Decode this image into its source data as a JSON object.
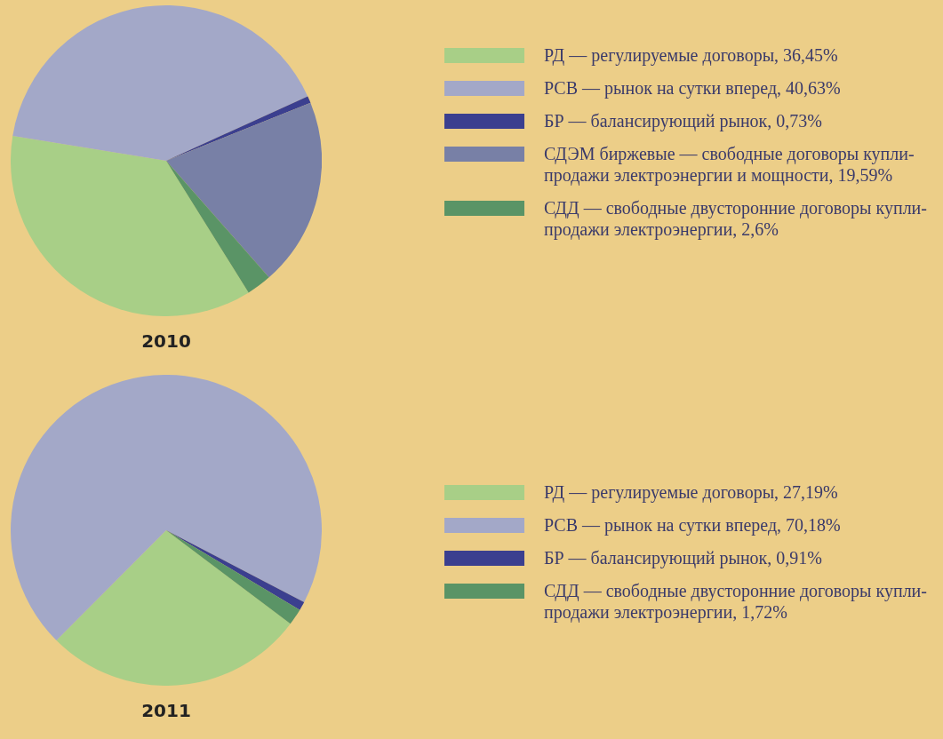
{
  "chart_data": [
    {
      "type": "pie",
      "title": "2010",
      "legend": "right",
      "categories": [
        "РД — регулируемые договоры, 36,45%",
        "РСВ — рынок на сутки вперед, 40,63%",
        "БР — балансирующий рынок, 0,73%",
        "СДЭМ биржевые — свободные договоры купли-продажи электроэнергии и мощности, 19,59%",
        "СДД — свободные двусторонние договоры купли-продажи электроэнергии, 2,6%"
      ],
      "values": [
        36.45,
        40.63,
        0.73,
        19.59,
        2.6
      ],
      "colors": [
        "#a8cf87",
        "#a3a8c8",
        "#3b3f8f",
        "#7880a6",
        "#5a9466"
      ]
    },
    {
      "type": "pie",
      "title": "2011",
      "legend": "right",
      "categories": [
        "РД — регулируемые договоры, 27,19%",
        "РСВ — рынок на сутки вперед, 70,18%",
        "БР — балансирующий рынок, 0,91%",
        "СДД — свободные двусторонние договоры купли-продажи электроэнергии, 1,72%"
      ],
      "values": [
        27.19,
        70.18,
        0.91,
        1.72
      ],
      "colors": [
        "#a8cf87",
        "#a3a8c8",
        "#3b3f8f",
        "#5a9466"
      ]
    }
  ]
}
